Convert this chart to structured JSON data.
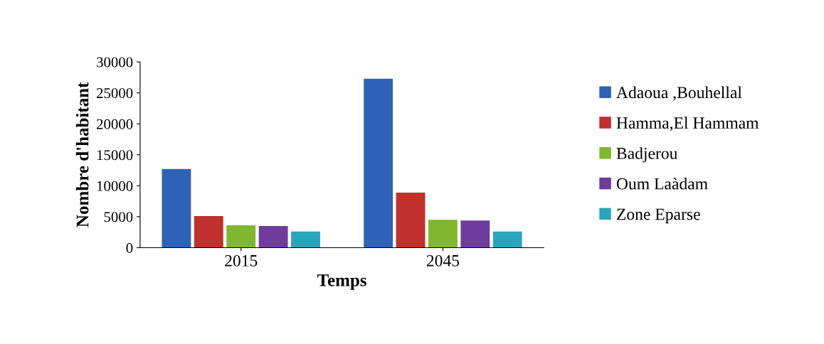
{
  "chart_data": {
    "type": "bar",
    "xlabel": "Temps",
    "ylabel": "Nombre d'habitant",
    "categories": [
      "2015",
      "2045"
    ],
    "series": [
      {
        "name": "Adaoua ,Bouhellal",
        "color": "#2e62b8",
        "values": [
          12700,
          27300
        ]
      },
      {
        "name": "Hamma,El Hammam",
        "color": "#c0302c",
        "values": [
          5100,
          8900
        ]
      },
      {
        "name": "Badjerou",
        "color": "#7fb82e",
        "values": [
          3600,
          4500
        ]
      },
      {
        "name": "Oum Laàdam",
        "color": "#6e3c9c",
        "values": [
          3500,
          4400
        ]
      },
      {
        "name": "Zone Eparse",
        "color": "#2aa5be",
        "values": [
          2600,
          2600
        ]
      }
    ],
    "ylim": [
      0,
      30000
    ],
    "yticks": [
      0,
      5000,
      10000,
      15000,
      20000,
      25000,
      30000
    ],
    "grid": false,
    "legend": "right"
  }
}
